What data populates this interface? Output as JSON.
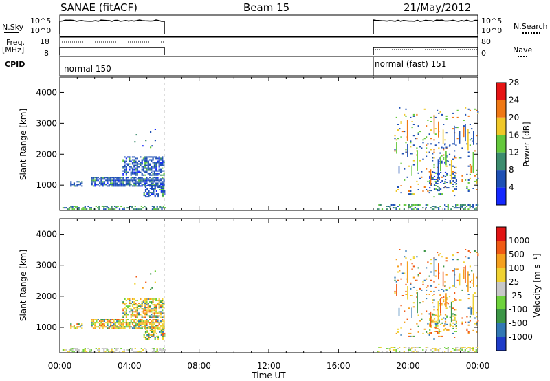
{
  "header": {
    "title": "SANAE (fitACF)",
    "beam": "Beam 15",
    "date": "21/May/2012"
  },
  "top_panels": {
    "nsky_label": "N.Sky",
    "nsky_ticks": [
      "10^5",
      "10^0"
    ],
    "nsearch_label": "N.Search",
    "nsearch_ticks": [
      "10^5",
      "10^0"
    ],
    "freq_label_1": "Freq.",
    "freq_label_2": "[MHz]",
    "freq_ticks": [
      "18",
      "8"
    ],
    "nave_label": "Nave",
    "nave_ticks": [
      "80",
      "0"
    ],
    "cpid_label": "CPID",
    "cpid_segments": [
      {
        "label": "normal 150",
        "start_hour": 0,
        "end_hour": 6
      },
      {
        "label": "normal (fast) 151",
        "start_hour": 18,
        "end_hour": 24
      }
    ]
  },
  "chart_data": [
    {
      "type": "heatmap",
      "parameter": "Power",
      "xlabel": "",
      "ylabel": "Slant Range [km]",
      "xlim": [
        0,
        24
      ],
      "ylim": [
        180,
        4500
      ],
      "y_ticks": [
        "1000",
        "2000",
        "3000",
        "4000"
      ],
      "colorbar_label": "Power [dB]",
      "colorbar_ticks": [
        "4",
        "8",
        "12",
        "16",
        "20",
        "24",
        "28"
      ],
      "colorbar_colors": [
        "#1428ff",
        "#1e50b4",
        "#3c8c6e",
        "#64c83c",
        "#f0c828",
        "#f07814",
        "#e61414"
      ]
    },
    {
      "type": "heatmap",
      "parameter": "Velocity",
      "xlabel": "Time UT",
      "ylabel": "Slant Range [km]",
      "xlim": [
        0,
        24
      ],
      "ylim": [
        180,
        4500
      ],
      "y_ticks": [
        "1000",
        "2000",
        "3000",
        "4000"
      ],
      "x_ticks": [
        "00:00",
        "04:00",
        "08:00",
        "12:00",
        "16:00",
        "20:00",
        "00:00"
      ],
      "colorbar_label": "Velocity [m s⁻¹]",
      "colorbar_ticks": [
        "1000",
        "500",
        "100",
        "25",
        "-25",
        "-100",
        "-500",
        "-1000"
      ],
      "colorbar_colors": [
        "#1e3cc8",
        "#3278b4",
        "#3c9646",
        "#6ed23c",
        "#c8c8c8",
        "#f0d232",
        "#f5a01e",
        "#f05a14",
        "#e11414"
      ]
    }
  ]
}
